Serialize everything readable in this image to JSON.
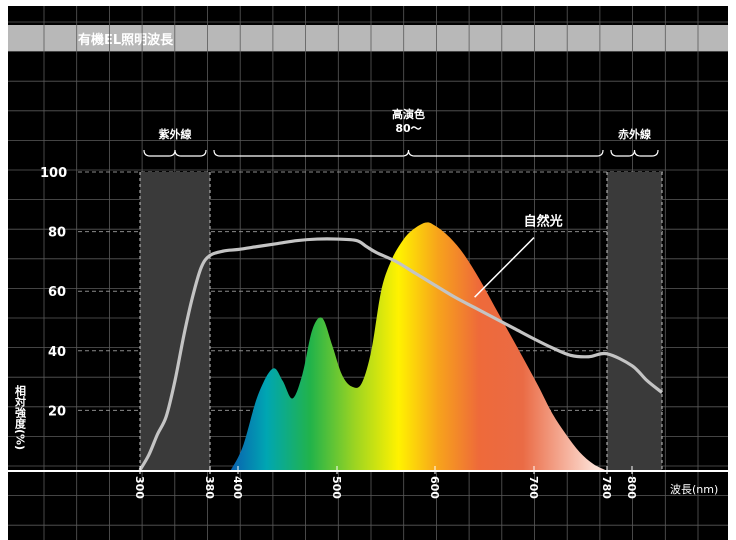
{
  "chart_data": {
    "type": "area",
    "title": "有機EL照明波長",
    "ylabel": "相対強度(%)",
    "xlabel": "波長(nm)",
    "x_ticks": [
      300,
      380,
      400,
      500,
      600,
      700,
      780,
      800
    ],
    "y_ticks": [
      20,
      40,
      60,
      80,
      100
    ],
    "xlim": [
      300,
      820
    ],
    "ylim": [
      0,
      100
    ],
    "grid": true,
    "regions": [
      {
        "label": "紫外線",
        "x_start": 300,
        "x_end": 380,
        "shaded": true
      },
      {
        "label": "高演色",
        "sublabel": "80〜",
        "x_start": 380,
        "x_end": 780,
        "shaded": false
      },
      {
        "label": "赤外線",
        "x_start": 780,
        "x_end": 820,
        "shaded": true
      }
    ],
    "series": [
      {
        "name": "有機EL照明",
        "kind": "spectrum-area",
        "x": [
          395,
          405,
          420,
          435,
          445,
          455,
          465,
          475,
          485,
          495,
          505,
          515,
          525,
          535,
          545,
          555,
          565,
          575,
          590,
          600,
          615,
          630,
          645,
          660,
          675,
          690,
          705,
          720,
          735,
          750,
          765,
          778
        ],
        "y": [
          0,
          8,
          25,
          34,
          30,
          24,
          32,
          47,
          51,
          42,
          32,
          28,
          29,
          40,
          60,
          70,
          76,
          80,
          83,
          82,
          78,
          72,
          64,
          55,
          46,
          37,
          28,
          19,
          12,
          6,
          2,
          0
        ]
      },
      {
        "name": "自然光",
        "kind": "line",
        "x": [
          300,
          310,
          320,
          330,
          340,
          350,
          360,
          370,
          380,
          390,
          400,
          420,
          440,
          460,
          480,
          500,
          520,
          530,
          540,
          560,
          580,
          600,
          620,
          640,
          660,
          680,
          700,
          720,
          740,
          760,
          780,
          800,
          810,
          820
        ],
        "y": [
          0,
          5,
          12,
          18,
          30,
          45,
          58,
          68,
          72,
          73.5,
          74,
          75,
          76,
          77,
          77.5,
          77.5,
          77,
          75,
          73,
          70,
          66,
          62,
          58,
          54.5,
          51,
          47.5,
          44,
          41,
          38.5,
          38,
          39,
          35,
          30,
          26
        ]
      }
    ],
    "annotations": [
      {
        "text": "自然光",
        "x": 710,
        "y": 82
      }
    ]
  }
}
